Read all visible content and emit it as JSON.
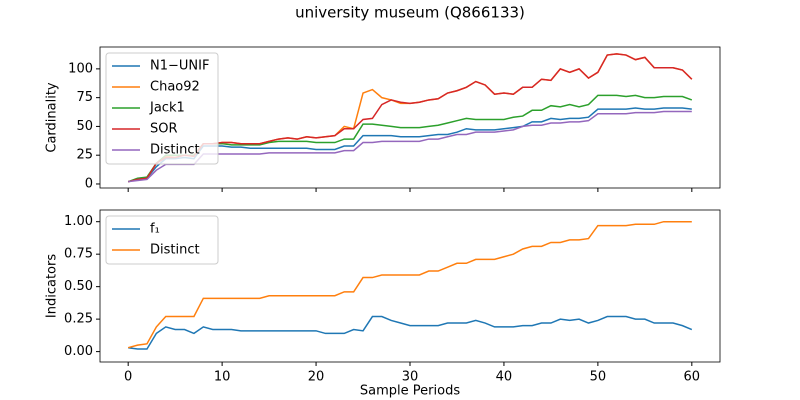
{
  "chart_data": [
    {
      "type": "line",
      "title": "university museum (Q866133)",
      "ylabel": "Cardinality",
      "x": [
        0,
        1,
        2,
        3,
        4,
        5,
        6,
        7,
        8,
        9,
        10,
        11,
        12,
        13,
        14,
        15,
        16,
        17,
        18,
        19,
        20,
        21,
        22,
        23,
        24,
        25,
        26,
        27,
        28,
        29,
        30,
        31,
        32,
        33,
        34,
        35,
        36,
        37,
        38,
        39,
        40,
        41,
        42,
        43,
        44,
        45,
        46,
        47,
        48,
        49,
        50,
        51,
        52,
        53,
        54,
        55,
        56,
        57,
        58,
        59,
        60
      ],
      "xlim": [
        -3,
        63
      ],
      "ylim": [
        -3.5,
        119
      ],
      "yticks": [
        0,
        25,
        50,
        75,
        100
      ],
      "legend": "upper-left",
      "series": [
        {
          "name": "N1−UNIF",
          "color": "#1f77b4",
          "values": [
            2,
            4,
            5,
            15,
            22,
            22,
            23,
            22,
            33,
            33,
            33,
            32,
            32,
            31,
            31,
            31,
            31,
            31,
            31,
            31,
            30,
            30,
            30,
            33,
            33,
            42,
            42,
            42,
            42,
            41,
            41,
            41,
            42,
            43,
            43,
            45,
            48,
            47,
            47,
            47,
            48,
            49,
            50,
            54,
            54,
            57,
            56,
            57,
            57,
            58,
            65,
            65,
            65,
            65,
            66,
            65,
            65,
            66,
            66,
            66,
            65
          ]
        },
        {
          "name": "Chao92",
          "color": "#ff7f0e",
          "values": [
            2,
            4,
            5,
            18,
            24,
            25,
            25,
            25,
            35,
            35,
            36,
            36,
            35,
            35,
            35,
            37,
            39,
            40,
            39,
            41,
            40,
            41,
            42,
            50,
            48,
            79,
            82,
            75,
            73,
            70,
            70,
            71,
            73,
            74,
            79,
            81,
            84,
            89,
            86,
            78,
            79,
            78,
            84,
            84,
            91,
            90,
            100,
            97,
            100,
            92,
            97,
            112,
            113,
            112,
            108,
            110,
            101,
            101,
            101,
            99,
            91
          ]
        },
        {
          "name": "Jack1",
          "color": "#2ca02c",
          "values": [
            2,
            5,
            6,
            18,
            25,
            25,
            25,
            25,
            35,
            35,
            35,
            34,
            34,
            34,
            34,
            36,
            37,
            37,
            37,
            37,
            36,
            36,
            36,
            39,
            39,
            52,
            52,
            51,
            50,
            49,
            49,
            49,
            50,
            51,
            53,
            55,
            57,
            56,
            56,
            56,
            56,
            58,
            59,
            64,
            64,
            68,
            67,
            69,
            67,
            69,
            77,
            77,
            77,
            76,
            77,
            75,
            75,
            76,
            76,
            76,
            73
          ]
        },
        {
          "name": "SOR",
          "color": "#d62728",
          "values": [
            2,
            4,
            5,
            18,
            23,
            23,
            25,
            24,
            35,
            35,
            36,
            36,
            35,
            35,
            35,
            37,
            39,
            40,
            39,
            41,
            40,
            41,
            42,
            48,
            48,
            56,
            57,
            69,
            73,
            71,
            70,
            71,
            73,
            74,
            79,
            81,
            84,
            89,
            86,
            78,
            79,
            78,
            84,
            84,
            91,
            90,
            100,
            97,
            100,
            92,
            97,
            112,
            113,
            112,
            108,
            110,
            101,
            101,
            101,
            99,
            91
          ]
        },
        {
          "name": "Distinct",
          "color": "#9467bd",
          "values": [
            2,
            3,
            4,
            12,
            17,
            17,
            17,
            17,
            26,
            26,
            26,
            26,
            26,
            26,
            26,
            27,
            27,
            27,
            27,
            27,
            27,
            27,
            27,
            29,
            29,
            36,
            36,
            37,
            37,
            37,
            37,
            37,
            39,
            39,
            41,
            43,
            43,
            45,
            45,
            45,
            46,
            47,
            50,
            51,
            51,
            53,
            53,
            54,
            54,
            55,
            61,
            61,
            61,
            61,
            62,
            62,
            62,
            63,
            63,
            63,
            63
          ]
        }
      ]
    },
    {
      "type": "line",
      "ylabel": "Indicators",
      "xlabel": "Sample Periods",
      "x": [
        0,
        1,
        2,
        3,
        4,
        5,
        6,
        7,
        8,
        9,
        10,
        11,
        12,
        13,
        14,
        15,
        16,
        17,
        18,
        19,
        20,
        21,
        22,
        23,
        24,
        25,
        26,
        27,
        28,
        29,
        30,
        31,
        32,
        33,
        34,
        35,
        36,
        37,
        38,
        39,
        40,
        41,
        42,
        43,
        44,
        45,
        46,
        47,
        48,
        49,
        50,
        51,
        52,
        53,
        54,
        55,
        56,
        57,
        58,
        59,
        60
      ],
      "xlim": [
        -3,
        63
      ],
      "ylim": [
        -0.08,
        1.09
      ],
      "xticks": [
        0,
        10,
        20,
        30,
        40,
        50,
        60
      ],
      "yticks": [
        {
          "value": 0,
          "label": "0.00"
        },
        {
          "value": 0.25,
          "label": "0.25"
        },
        {
          "value": 0.5,
          "label": "0.50"
        },
        {
          "value": 0.75,
          "label": "0.75"
        },
        {
          "value": 1,
          "label": "1.00"
        }
      ],
      "legend": "upper-left",
      "series": [
        {
          "name": "f₁",
          "color": "#1f77b4",
          "values": [
            0.03,
            0.02,
            0.02,
            0.14,
            0.19,
            0.17,
            0.17,
            0.14,
            0.19,
            0.17,
            0.17,
            0.17,
            0.16,
            0.16,
            0.16,
            0.16,
            0.16,
            0.16,
            0.16,
            0.16,
            0.16,
            0.14,
            0.14,
            0.14,
            0.17,
            0.16,
            0.27,
            0.27,
            0.24,
            0.22,
            0.2,
            0.2,
            0.2,
            0.2,
            0.22,
            0.22,
            0.22,
            0.24,
            0.22,
            0.19,
            0.19,
            0.19,
            0.2,
            0.2,
            0.22,
            0.22,
            0.25,
            0.24,
            0.25,
            0.22,
            0.24,
            0.27,
            0.27,
            0.27,
            0.25,
            0.25,
            0.22,
            0.22,
            0.22,
            0.2,
            0.17
          ]
        },
        {
          "name": "Distinct",
          "color": "#ff7f0e",
          "values": [
            0.03,
            0.05,
            0.06,
            0.19,
            0.27,
            0.27,
            0.27,
            0.27,
            0.41,
            0.41,
            0.41,
            0.41,
            0.41,
            0.41,
            0.41,
            0.43,
            0.43,
            0.43,
            0.43,
            0.43,
            0.43,
            0.43,
            0.43,
            0.46,
            0.46,
            0.57,
            0.57,
            0.59,
            0.59,
            0.59,
            0.59,
            0.59,
            0.62,
            0.62,
            0.65,
            0.68,
            0.68,
            0.71,
            0.71,
            0.71,
            0.73,
            0.75,
            0.79,
            0.81,
            0.81,
            0.84,
            0.84,
            0.86,
            0.86,
            0.87,
            0.97,
            0.97,
            0.97,
            0.97,
            0.98,
            0.98,
            0.98,
            1,
            1,
            1,
            1
          ]
        }
      ]
    }
  ]
}
